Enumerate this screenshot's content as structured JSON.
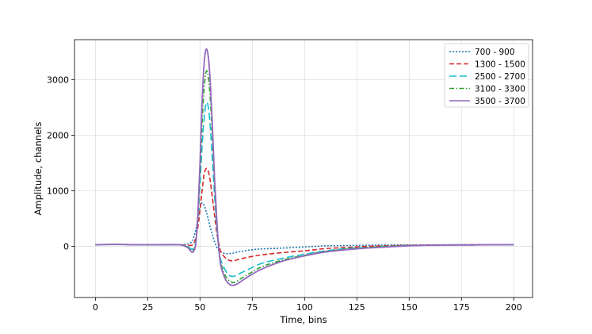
{
  "chart_data": {
    "type": "line",
    "title": "",
    "xlabel": "Time, bins",
    "ylabel": "Amplitude, channels",
    "xlim": [
      -10,
      209
    ],
    "ylim": [
      -920,
      3720
    ],
    "xticks": [
      0,
      25,
      50,
      75,
      100,
      125,
      150,
      175,
      200
    ],
    "yticks": [
      0,
      1000,
      2000,
      3000
    ],
    "grid": true,
    "legend_position": "top-right",
    "series": [
      {
        "name": "700 - 900",
        "color": "#1f77b4",
        "dash": "dotted",
        "x": [
          0,
          10,
          20,
          30,
          40,
          44,
          46,
          47,
          48,
          49,
          50,
          51,
          52,
          53,
          54,
          55,
          56,
          57,
          58,
          59,
          60,
          62,
          64,
          66,
          68,
          70,
          75,
          80,
          90,
          100,
          110,
          120,
          130,
          140,
          150,
          160,
          170,
          180,
          190,
          200
        ],
        "y": [
          30,
          35,
          30,
          30,
          30,
          40,
          80,
          160,
          300,
          500,
          700,
          780,
          740,
          620,
          480,
          330,
          200,
          80,
          -10,
          -70,
          -100,
          -130,
          -130,
          -120,
          -100,
          -90,
          -60,
          -45,
          -30,
          -10,
          10,
          15,
          20,
          25,
          25,
          25,
          30,
          30,
          30,
          30
        ]
      },
      {
        "name": "1300 - 1500",
        "color": "#d62728",
        "dash": "dashed",
        "x": [
          0,
          10,
          20,
          30,
          40,
          44,
          46,
          47,
          48,
          49,
          50,
          51,
          52,
          53,
          54,
          55,
          56,
          57,
          58,
          59,
          60,
          62,
          64,
          66,
          68,
          70,
          75,
          80,
          90,
          100,
          110,
          120,
          130,
          140,
          150,
          160,
          170,
          180,
          190,
          200
        ],
        "y": [
          30,
          35,
          30,
          30,
          30,
          20,
          20,
          60,
          150,
          350,
          650,
          1000,
          1300,
          1400,
          1350,
          1150,
          850,
          550,
          250,
          50,
          -100,
          -200,
          -250,
          -260,
          -240,
          -220,
          -180,
          -150,
          -110,
          -80,
          -40,
          -20,
          0,
          10,
          20,
          25,
          25,
          30,
          30,
          30
        ]
      },
      {
        "name": "2500 - 2700",
        "color": "#17becf",
        "dash": "long-dashed",
        "x": [
          0,
          10,
          20,
          30,
          40,
          44,
          46,
          47,
          48,
          49,
          50,
          51,
          52,
          53,
          54,
          55,
          56,
          57,
          58,
          59,
          60,
          62,
          64,
          66,
          68,
          70,
          75,
          80,
          90,
          100,
          110,
          120,
          130,
          140,
          150,
          160,
          170,
          180,
          190,
          200
        ],
        "y": [
          30,
          35,
          30,
          30,
          30,
          0,
          -50,
          -30,
          100,
          500,
          1100,
          1800,
          2300,
          2580,
          2500,
          2100,
          1500,
          900,
          350,
          -50,
          -250,
          -420,
          -520,
          -540,
          -510,
          -470,
          -380,
          -300,
          -210,
          -140,
          -80,
          -40,
          -20,
          0,
          15,
          20,
          25,
          25,
          30,
          30
        ]
      },
      {
        "name": "3100 - 3300",
        "color": "#2ca02c",
        "dash": "dash-dot",
        "x": [
          0,
          10,
          20,
          30,
          40,
          44,
          46,
          47,
          48,
          49,
          50,
          51,
          52,
          53,
          54,
          55,
          56,
          57,
          58,
          59,
          60,
          62,
          64,
          66,
          68,
          70,
          75,
          80,
          90,
          100,
          110,
          120,
          130,
          140,
          150,
          160,
          170,
          180,
          190,
          200
        ],
        "y": [
          30,
          35,
          30,
          30,
          30,
          -10,
          -80,
          -60,
          80,
          550,
          1300,
          2200,
          2850,
          3150,
          3050,
          2600,
          1900,
          1100,
          450,
          -50,
          -300,
          -520,
          -620,
          -650,
          -620,
          -570,
          -460,
          -360,
          -240,
          -160,
          -90,
          -50,
          -20,
          0,
          15,
          20,
          25,
          25,
          30,
          30
        ]
      },
      {
        "name": "3500 - 3700",
        "color": "#9467bd",
        "dash": "solid",
        "x": [
          0,
          10,
          20,
          30,
          40,
          44,
          46,
          47,
          48,
          49,
          50,
          51,
          52,
          53,
          54,
          55,
          56,
          57,
          58,
          59,
          60,
          62,
          64,
          66,
          68,
          70,
          75,
          80,
          90,
          100,
          110,
          120,
          130,
          140,
          150,
          160,
          170,
          180,
          190,
          200
        ],
        "y": [
          30,
          35,
          30,
          30,
          30,
          -20,
          -100,
          -80,
          50,
          600,
          1500,
          2600,
          3300,
          3550,
          3400,
          2900,
          2100,
          1200,
          500,
          -50,
          -350,
          -580,
          -680,
          -700,
          -670,
          -620,
          -500,
          -400,
          -260,
          -170,
          -100,
          -60,
          -30,
          -10,
          10,
          20,
          25,
          25,
          30,
          30
        ]
      }
    ]
  }
}
